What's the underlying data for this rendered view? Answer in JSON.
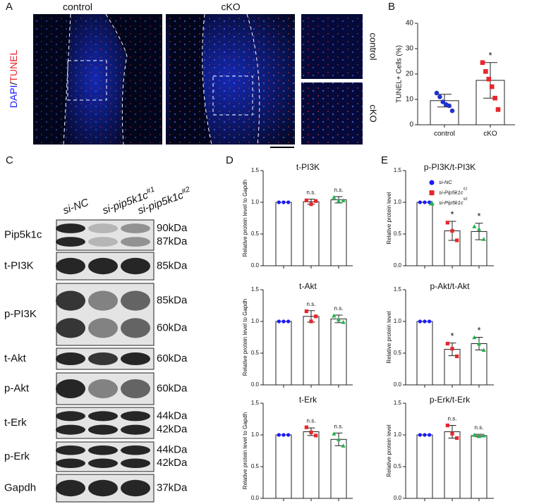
{
  "panel_labels": [
    "A",
    "B",
    "C",
    "D",
    "E"
  ],
  "panel_a": {
    "column_titles": [
      "control",
      "cKO"
    ],
    "stain": [
      "DAPI",
      "/",
      "TUNEL"
    ],
    "inset_labels": [
      "control",
      "cKO"
    ]
  },
  "panel_c": {
    "lanes": [
      {
        "label": "si-NC"
      },
      {
        "label": "si-pip5k1c",
        "sup": "#1"
      },
      {
        "label": "si-pip5k1c",
        "sup": "#2"
      }
    ],
    "rows": [
      {
        "name": "Pip5k1c",
        "sizes": [
          "90kDa",
          "87kDa"
        ]
      },
      {
        "name": "t-PI3K",
        "sizes": [
          "85kDa"
        ]
      },
      {
        "name": "p-PI3K",
        "sizes": [
          "85kDa",
          "60kDa"
        ]
      },
      {
        "name": "t-Akt",
        "sizes": [
          "60kDa"
        ]
      },
      {
        "name": "p-Akt",
        "sizes": [
          "60kDa"
        ]
      },
      {
        "name": "t-Erk",
        "sizes": [
          "44kDa",
          "42kDa"
        ]
      },
      {
        "name": "p-Erk",
        "sizes": [
          "44kDa",
          "42kDa"
        ]
      },
      {
        "name": "Gapdh",
        "sizes": [
          "37kDa"
        ]
      }
    ]
  },
  "chart_data": [
    {
      "type": "bar",
      "ylabel": "TUNEL+ Cells (%)",
      "categories": [
        "control",
        "cKO"
      ],
      "colors": [
        "#2233cc",
        "#e8262b"
      ],
      "markers": [
        "circle",
        "square"
      ],
      "values": [
        9.5,
        17.5
      ],
      "errors": [
        2.5,
        7
      ],
      "points": [
        [
          12.5,
          11,
          9,
          8,
          7.5,
          5.5
        ],
        [
          24.5,
          21,
          18,
          15,
          10.5,
          6
        ]
      ],
      "significance": [
        null,
        "*"
      ],
      "ylim": [
        0,
        40
      ],
      "yticks": [
        0,
        10,
        20,
        30,
        40
      ]
    },
    {
      "type": "bar",
      "title": "t-PI3K",
      "ylabel": "Relative protein level to Gapdh",
      "categories": [
        null,
        null,
        null
      ],
      "colors": [
        "#1a1aff",
        "#e8262b",
        "#22b14c"
      ],
      "markers": [
        "circle",
        "square",
        "triangle"
      ],
      "values": [
        1.0,
        1.01,
        1.04
      ],
      "errors": [
        0,
        0.04,
        0.05
      ],
      "points": [
        [
          1,
          1,
          1
        ],
        [
          1.03,
          0.97,
          1.02
        ],
        [
          1.08,
          1.02,
          1.03
        ]
      ],
      "significance": [
        null,
        "n.s.",
        "n.s."
      ],
      "ylim": [
        0,
        1.5
      ],
      "yticks": [
        {
          "value": 0,
          "label": "0.0"
        },
        {
          "value": 0.5,
          "label": "0.5"
        },
        {
          "value": 1,
          "label": "1.0"
        },
        {
          "value": 1.5,
          "label": "1.5"
        }
      ]
    },
    {
      "type": "bar",
      "title": "t-Akt",
      "ylabel": "Relative protein level to Gapdh",
      "categories": [
        null,
        null,
        null
      ],
      "colors": [
        "#1a1aff",
        "#e8262b",
        "#22b14c"
      ],
      "markers": [
        "circle",
        "square",
        "triangle"
      ],
      "values": [
        1.0,
        1.08,
        1.04
      ],
      "errors": [
        0,
        0.09,
        0.06
      ],
      "points": [
        [
          1,
          1,
          1
        ],
        [
          1.16,
          1.0,
          1.08
        ],
        [
          1.09,
          1.03,
          0.99
        ]
      ],
      "significance": [
        null,
        "n.s.",
        "n.s."
      ],
      "ylim": [
        0,
        1.5
      ],
      "yticks": [
        {
          "value": 0,
          "label": "0.0"
        },
        {
          "value": 0.5,
          "label": "0.5"
        },
        {
          "value": 1,
          "label": "1.0"
        },
        {
          "value": 1.5,
          "label": "1.5"
        }
      ]
    },
    {
      "type": "bar",
      "title": "t-Erk",
      "ylabel": "Relative protein level to Gapdh",
      "categories": [
        null,
        null,
        null
      ],
      "colors": [
        "#1a1aff",
        "#e8262b",
        "#22b14c"
      ],
      "markers": [
        "circle",
        "square",
        "triangle"
      ],
      "values": [
        1.0,
        1.05,
        0.93
      ],
      "errors": [
        0,
        0.06,
        0.1
      ],
      "points": [
        [
          1,
          1,
          1
        ],
        [
          1.12,
          1.04,
          0.99
        ],
        [
          1.02,
          0.93,
          0.83
        ]
      ],
      "significance": [
        null,
        "n.s.",
        "n.s."
      ],
      "ylim": [
        0,
        1.5
      ],
      "yticks": [
        {
          "value": 0,
          "label": "0.0"
        },
        {
          "value": 0.5,
          "label": "0.5"
        },
        {
          "value": 1,
          "label": "1.0"
        },
        {
          "value": 1.5,
          "label": "1.5"
        }
      ]
    },
    {
      "type": "bar",
      "title": "p-PI3K/t-PI3K",
      "ylabel": "Relative protein level",
      "categories": [
        null,
        null,
        null
      ],
      "colors": [
        "#1a1aff",
        "#e8262b",
        "#22b14c"
      ],
      "markers": [
        "circle",
        "square",
        "triangle"
      ],
      "values": [
        1.0,
        0.55,
        0.54
      ],
      "errors": [
        0,
        0.15,
        0.13
      ],
      "points": [
        [
          1,
          1,
          1
        ],
        [
          0.68,
          0.55,
          0.4
        ],
        [
          0.62,
          0.58,
          0.42
        ]
      ],
      "significance": [
        null,
        "*",
        "*"
      ],
      "legend": [
        {
          "label": "si-NC"
        },
        {
          "label": "si-Pip5k1c",
          "sup": "#1"
        },
        {
          "label": "si-Pip5k1c",
          "sup": "#2"
        }
      ],
      "ylim": [
        0,
        1.5
      ],
      "yticks": [
        {
          "value": 0,
          "label": "0.0"
        },
        {
          "value": 0.5,
          "label": "0.5"
        },
        {
          "value": 1,
          "label": "1.0"
        },
        {
          "value": 1.5,
          "label": "1.5"
        }
      ]
    },
    {
      "type": "bar",
      "title": "p-Akt/t-Akt",
      "ylabel": "Relative protein level",
      "categories": [
        null,
        null,
        null
      ],
      "colors": [
        "#1a1aff",
        "#e8262b",
        "#22b14c"
      ],
      "markers": [
        "circle",
        "square",
        "triangle"
      ],
      "values": [
        1.0,
        0.56,
        0.65
      ],
      "errors": [
        0,
        0.1,
        0.1
      ],
      "points": [
        [
          1,
          1,
          1
        ],
        [
          0.65,
          0.57,
          0.45
        ],
        [
          0.75,
          0.65,
          0.55
        ]
      ],
      "significance": [
        null,
        "*",
        "*"
      ],
      "ylim": [
        0,
        1.5
      ],
      "yticks": [
        {
          "value": 0,
          "label": "0.0"
        },
        {
          "value": 0.5,
          "label": "0.5"
        },
        {
          "value": 1,
          "label": "1.0"
        },
        {
          "value": 1.5,
          "label": "1.5"
        }
      ]
    },
    {
      "type": "bar",
      "title": "p-Erk/t-Erk",
      "ylabel": "Relative protein level",
      "categories": [
        null,
        null,
        null
      ],
      "colors": [
        "#1a1aff",
        "#e8262b",
        "#22b14c"
      ],
      "markers": [
        "circle",
        "square",
        "triangle"
      ],
      "values": [
        1.0,
        1.05,
        0.99
      ],
      "errors": [
        0,
        0.1,
        0.02
      ],
      "points": [
        [
          1,
          1,
          1
        ],
        [
          1.15,
          1.02,
          0.95
        ],
        [
          1.0,
          0.98,
          0.99
        ]
      ],
      "significance": [
        null,
        "n.s.",
        "n.s."
      ],
      "ylim": [
        0,
        1.5
      ],
      "yticks": [
        {
          "value": 0,
          "label": "0.0"
        },
        {
          "value": 0.5,
          "label": "0.5"
        },
        {
          "value": 1,
          "label": "1.0"
        },
        {
          "value": 1.5,
          "label": "1.5"
        }
      ]
    }
  ]
}
